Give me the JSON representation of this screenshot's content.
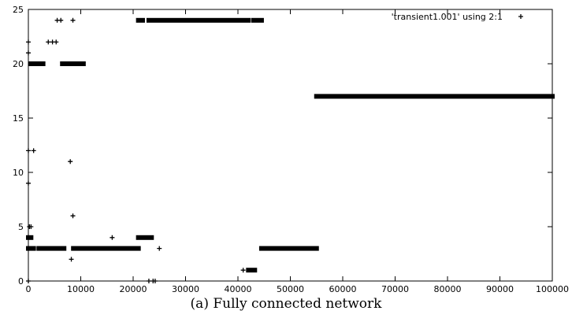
{
  "caption": "(a) Fully connected network",
  "chart_data": {
    "type": "scatter",
    "xlim": [
      0,
      100000
    ],
    "ylim": [
      0,
      25
    ],
    "xticks": [
      0,
      10000,
      20000,
      30000,
      40000,
      50000,
      60000,
      70000,
      80000,
      90000,
      100000
    ],
    "yticks": [
      0,
      5,
      10,
      15,
      20,
      25
    ],
    "grid": false,
    "legend_position": "top-right",
    "series": [
      {
        "name": "'transient1.001' using 2:1",
        "marker": "+",
        "color": "#000000",
        "points": [
          [
            0,
            21
          ],
          [
            0,
            22
          ],
          [
            0,
            12
          ],
          [
            0,
            9
          ],
          [
            0,
            4
          ],
          [
            0,
            0
          ],
          [
            200,
            5
          ],
          [
            500,
            5
          ],
          [
            1000,
            12
          ],
          [
            8000,
            11
          ],
          [
            8500,
            6
          ],
          [
            8200,
            2
          ],
          [
            5500,
            24
          ],
          [
            6200,
            24
          ],
          [
            8500,
            24
          ],
          [
            3800,
            22
          ],
          [
            4600,
            22
          ],
          [
            5300,
            22
          ],
          [
            16000,
            4
          ],
          [
            25000,
            3
          ],
          [
            41000,
            1
          ],
          [
            23000,
            0
          ],
          [
            23800,
            0
          ],
          [
            24200,
            0
          ]
        ],
        "runs": [
          {
            "y": 20,
            "x_start": 500,
            "x_end": 2800
          },
          {
            "y": 20,
            "x_start": 6500,
            "x_end": 10500
          },
          {
            "y": 3,
            "x_start": 0,
            "x_end": 1000
          },
          {
            "y": 3,
            "x_start": 2000,
            "x_end": 6800
          },
          {
            "y": 3,
            "x_start": 8600,
            "x_end": 21000
          },
          {
            "y": 4,
            "x_start": 0,
            "x_end": 500
          },
          {
            "y": 4,
            "x_start": 21000,
            "x_end": 23500
          },
          {
            "y": 24,
            "x_start": 21000,
            "x_end": 21800
          },
          {
            "y": 24,
            "x_start": 23000,
            "x_end": 42000
          },
          {
            "y": 24,
            "x_start": 43000,
            "x_end": 44500
          },
          {
            "y": 1,
            "x_start": 42000,
            "x_end": 43200
          },
          {
            "y": 3,
            "x_start": 44500,
            "x_end": 55000
          },
          {
            "y": 17,
            "x_start": 55000,
            "x_end": 100000
          }
        ]
      }
    ]
  }
}
